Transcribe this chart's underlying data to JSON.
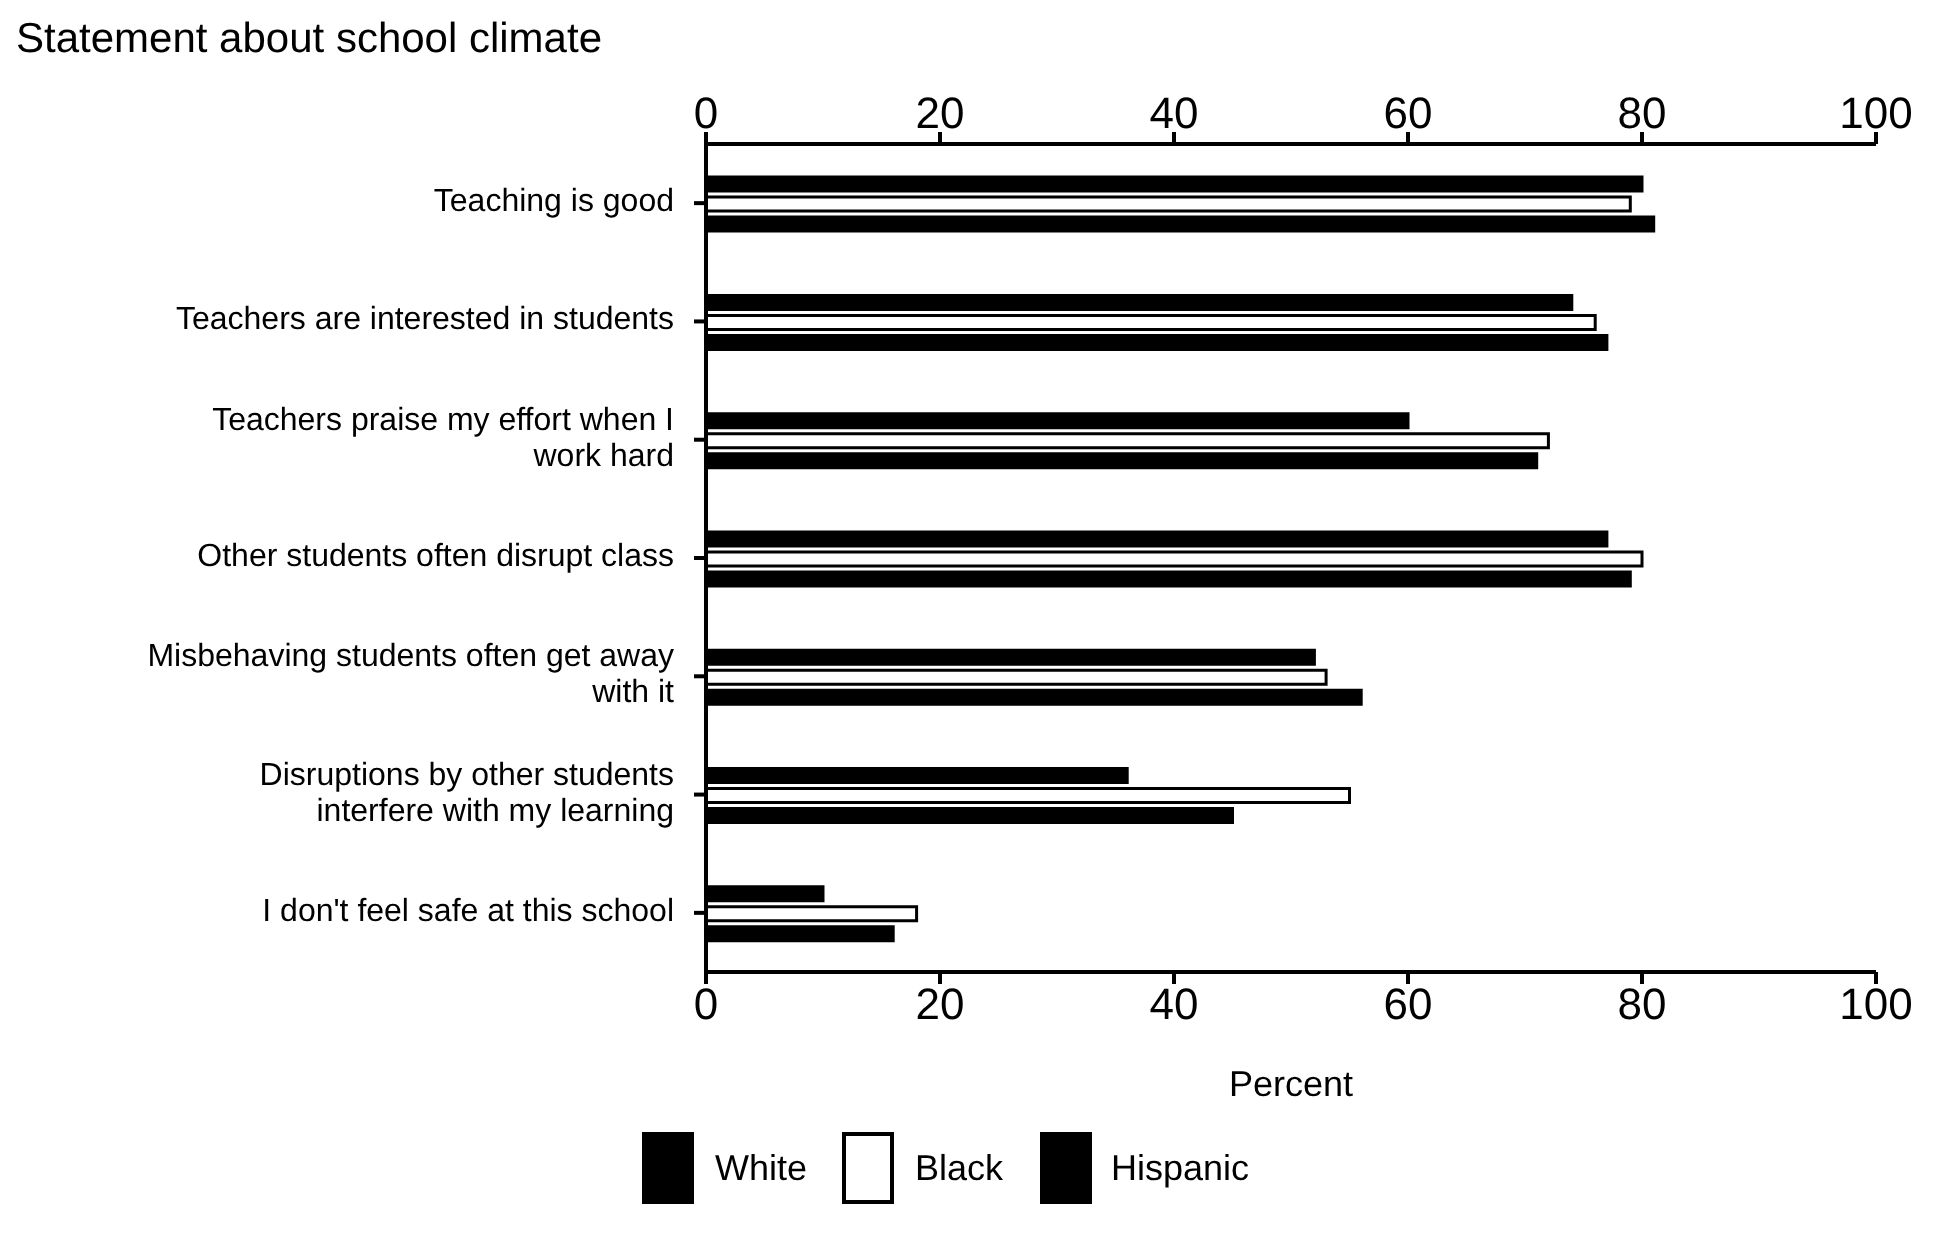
{
  "chart_data": {
    "type": "bar",
    "orientation": "horizontal",
    "title": "Statement about school climate",
    "xlabel": "Percent",
    "categories": [
      "Teaching is good",
      "Teachers are interested in students",
      "Teachers praise my effort when I work hard",
      "Other students often disrupt class",
      "Misbehaving students often get away with it",
      "Disruptions by other students interfere with my learning",
      "I don't feel safe at this school"
    ],
    "series": [
      {
        "name": "White",
        "color": "#000000",
        "values": [
          80,
          74,
          60,
          77,
          52,
          36,
          10
        ]
      },
      {
        "name": "Black",
        "color": "#ffffff",
        "values": [
          79,
          76,
          72,
          80,
          53,
          55,
          18
        ]
      },
      {
        "name": "Hispanic",
        "color": "#000000",
        "values": [
          81,
          77,
          71,
          79,
          56,
          45,
          16
        ]
      }
    ],
    "xlim": [
      0,
      100
    ],
    "xticks": [
      0,
      20,
      40,
      60,
      80,
      100
    ],
    "x2lim": [
      0,
      100
    ],
    "x2ticks": [
      0,
      20,
      40,
      60,
      80,
      100
    ],
    "legend": "bottom"
  }
}
